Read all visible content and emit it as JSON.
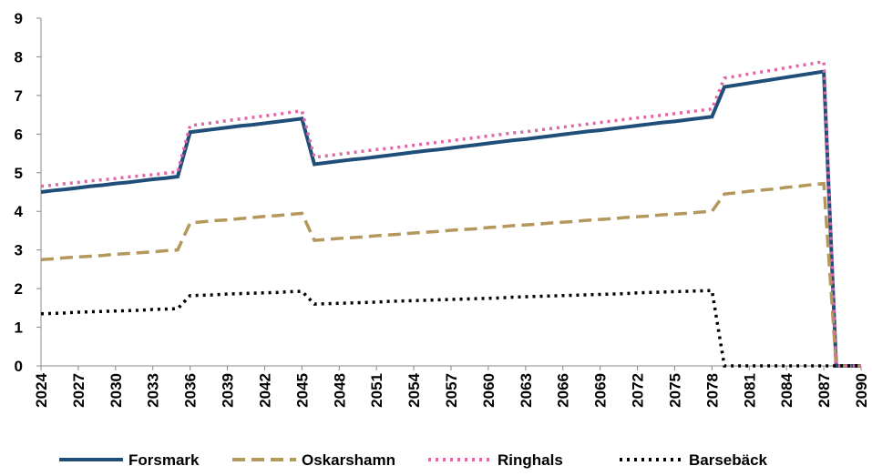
{
  "chart_data": {
    "type": "line",
    "x": [
      2024,
      2025,
      2026,
      2027,
      2028,
      2029,
      2030,
      2031,
      2032,
      2033,
      2034,
      2035,
      2036,
      2037,
      2038,
      2039,
      2040,
      2041,
      2042,
      2043,
      2044,
      2045,
      2046,
      2047,
      2048,
      2049,
      2050,
      2051,
      2052,
      2053,
      2054,
      2055,
      2056,
      2057,
      2058,
      2059,
      2060,
      2061,
      2062,
      2063,
      2064,
      2065,
      2066,
      2067,
      2068,
      2069,
      2070,
      2071,
      2072,
      2073,
      2074,
      2075,
      2076,
      2077,
      2078,
      2079,
      2080,
      2081,
      2082,
      2083,
      2084,
      2085,
      2086,
      2087,
      2088,
      2089,
      2090
    ],
    "xlim": [
      2024,
      2090
    ],
    "xticks": [
      2024,
      2027,
      2030,
      2033,
      2036,
      2039,
      2042,
      2045,
      2048,
      2051,
      2054,
      2057,
      2060,
      2063,
      2066,
      2069,
      2072,
      2075,
      2078,
      2081,
      2084,
      2087,
      2090
    ],
    "ylim": [
      0,
      9
    ],
    "yticks": [
      0,
      1,
      2,
      3,
      4,
      5,
      6,
      7,
      8,
      9
    ],
    "series": [
      {
        "name": "Forsmark",
        "color": "#1f4e79",
        "style": "solid",
        "values": [
          4.5,
          4.54,
          4.57,
          4.61,
          4.65,
          4.68,
          4.72,
          4.75,
          4.79,
          4.83,
          4.86,
          4.9,
          6.05,
          6.09,
          6.13,
          6.17,
          6.21,
          6.24,
          6.28,
          6.32,
          6.36,
          6.4,
          5.22,
          5.26,
          5.3,
          5.34,
          5.37,
          5.41,
          5.45,
          5.49,
          5.53,
          5.57,
          5.6,
          5.64,
          5.68,
          5.72,
          5.76,
          5.8,
          5.84,
          5.87,
          5.91,
          5.95,
          5.99,
          6.03,
          6.07,
          6.1,
          6.14,
          6.18,
          6.22,
          6.26,
          6.3,
          6.33,
          6.37,
          6.41,
          6.45,
          7.22,
          7.27,
          7.32,
          7.37,
          7.42,
          7.47,
          7.52,
          7.57,
          7.62,
          0,
          0,
          0
        ]
      },
      {
        "name": "Oskarshamn",
        "color": "#b4975a",
        "style": "dash",
        "values": [
          2.75,
          2.77,
          2.8,
          2.82,
          2.84,
          2.86,
          2.89,
          2.91,
          2.93,
          2.95,
          2.98,
          3.0,
          3.7,
          3.73,
          3.76,
          3.78,
          3.81,
          3.84,
          3.87,
          3.89,
          3.92,
          3.95,
          3.25,
          3.27,
          3.3,
          3.32,
          3.34,
          3.37,
          3.39,
          3.41,
          3.44,
          3.46,
          3.48,
          3.51,
          3.53,
          3.55,
          3.58,
          3.6,
          3.63,
          3.65,
          3.67,
          3.7,
          3.72,
          3.74,
          3.77,
          3.79,
          3.81,
          3.84,
          3.86,
          3.88,
          3.91,
          3.93,
          3.95,
          3.98,
          4.0,
          4.45,
          4.48,
          4.52,
          4.55,
          4.58,
          4.62,
          4.65,
          4.69,
          4.72,
          0,
          0,
          0
        ]
      },
      {
        "name": "Ringhals",
        "color": "#e066a8",
        "style": "dot",
        "values": [
          4.65,
          4.68,
          4.72,
          4.75,
          4.79,
          4.82,
          4.85,
          4.89,
          4.92,
          4.95,
          4.99,
          5.02,
          6.22,
          6.26,
          6.3,
          6.35,
          6.39,
          6.43,
          6.47,
          6.51,
          6.56,
          6.6,
          5.4,
          5.44,
          5.48,
          5.52,
          5.56,
          5.6,
          5.63,
          5.67,
          5.71,
          5.75,
          5.79,
          5.83,
          5.87,
          5.91,
          5.95,
          5.99,
          6.03,
          6.06,
          6.1,
          6.14,
          6.18,
          6.22,
          6.26,
          6.3,
          6.34,
          6.38,
          6.42,
          6.45,
          6.49,
          6.53,
          6.57,
          6.61,
          6.65,
          7.45,
          7.5,
          7.56,
          7.61,
          7.66,
          7.72,
          7.77,
          7.82,
          7.88,
          0,
          0,
          0
        ]
      },
      {
        "name": "Barsebäck",
        "color": "#000000",
        "style": "dot",
        "values": [
          1.35,
          1.36,
          1.37,
          1.39,
          1.4,
          1.41,
          1.42,
          1.43,
          1.44,
          1.46,
          1.47,
          1.48,
          1.82,
          1.83,
          1.84,
          1.86,
          1.87,
          1.88,
          1.89,
          1.9,
          1.92,
          1.93,
          1.6,
          1.61,
          1.62,
          1.63,
          1.64,
          1.65,
          1.67,
          1.68,
          1.69,
          1.7,
          1.71,
          1.72,
          1.73,
          1.74,
          1.75,
          1.76,
          1.78,
          1.79,
          1.8,
          1.81,
          1.82,
          1.83,
          1.84,
          1.85,
          1.86,
          1.87,
          1.89,
          1.9,
          1.91,
          1.92,
          1.93,
          1.94,
          1.95,
          0,
          0,
          0,
          0,
          0,
          0,
          0,
          0,
          0,
          0,
          0,
          0
        ]
      }
    ]
  }
}
